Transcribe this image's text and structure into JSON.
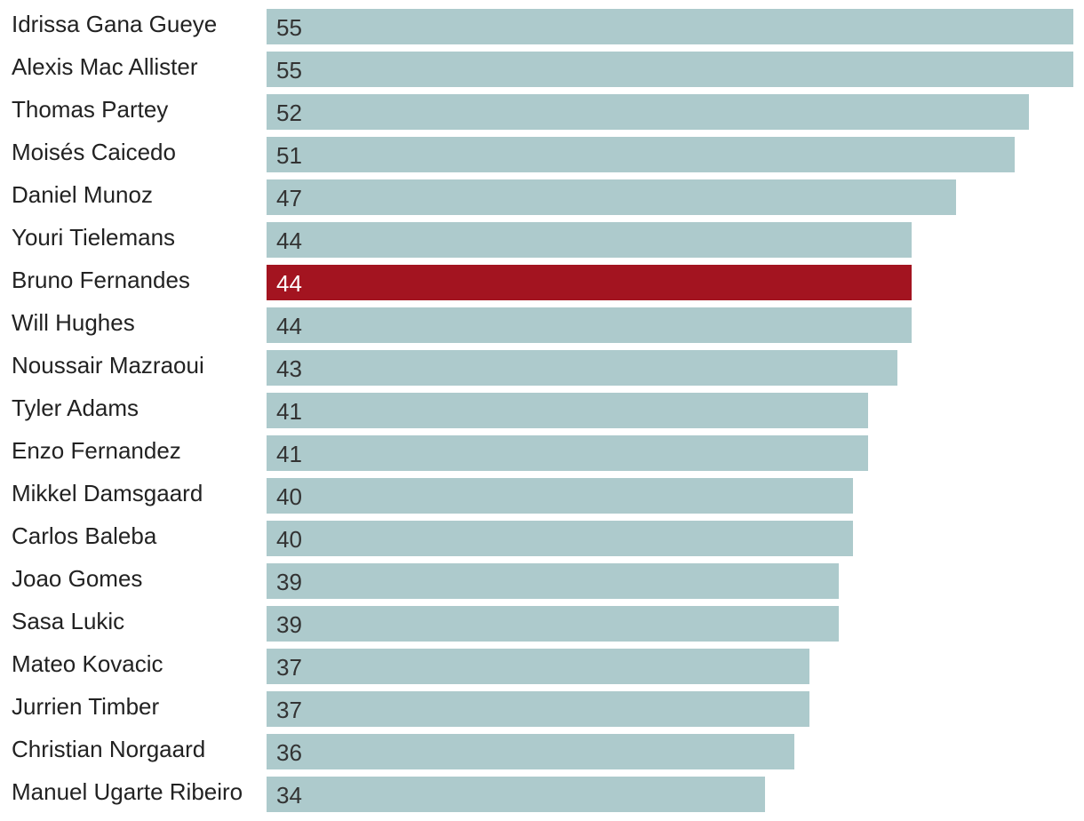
{
  "chart_data": {
    "type": "bar",
    "orientation": "horizontal",
    "categories": [
      "Idrissa Gana Gueye",
      "Alexis Mac Allister",
      "Thomas Partey",
      "Moisés Caicedo",
      "Daniel Munoz",
      "Youri Tielemans",
      "Bruno Fernandes",
      "Will Hughes",
      "Noussair Mazraoui",
      "Tyler Adams",
      "Enzo Fernandez",
      "Mikkel Damsgaard",
      "Carlos Baleba",
      "Joao Gomes",
      "Sasa Lukic",
      "Mateo Kovacic",
      "Jurrien Timber",
      "Christian Norgaard",
      "Manuel Ugarte Ribeiro"
    ],
    "values": [
      55,
      55,
      52,
      51,
      47,
      44,
      44,
      44,
      43,
      41,
      41,
      40,
      40,
      39,
      39,
      37,
      37,
      36,
      34
    ],
    "highlight": "Bruno Fernandes",
    "title": "",
    "xlabel": "",
    "ylabel": "",
    "xlim": [
      0,
      55
    ],
    "grid": false,
    "legend": "none",
    "data_labels": "inside-left"
  },
  "colors": {
    "bar": "#adcacc",
    "highlight_bar": "#a31420",
    "label_text": "#222222",
    "value_text": "#333333",
    "highlight_value_text": "#ffffff"
  }
}
